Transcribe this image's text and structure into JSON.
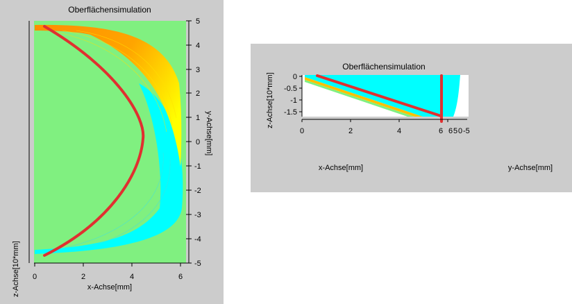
{
  "plot_left": {
    "title": "Oberflächensimulation",
    "x_axis_label": "x-Achse[mm]",
    "y_axis_label": "y-Achse[mm]",
    "z_axis_label": "z-Achse[10*mm]",
    "x_ticks": [
      "0",
      "2",
      "4",
      "6"
    ],
    "y_ticks": [
      "5",
      "4",
      "3",
      "2",
      "1",
      "0",
      "-1",
      "-2",
      "-3",
      "-4",
      "-5"
    ],
    "x_range": [
      0,
      6.25
    ],
    "y_range": [
      -5,
      5
    ],
    "colors": {
      "background": "#80f080",
      "cyan": "#00ffff",
      "orange": "#ff8c00",
      "yellow": "#ffff00",
      "line": "#e03030"
    }
  },
  "plot_right": {
    "title": "Oberflächensimulation",
    "x_axis_label": "x-Achse[mm]",
    "y_axis_label": "y-Achse[mm]",
    "z_axis_label": "z-Achse[10*mm]",
    "x_ticks": [
      "0",
      "2",
      "4",
      "6"
    ],
    "z_ticks": [
      "0",
      "-0.5",
      "-1",
      "-1.5"
    ],
    "y_ticks_partial": [
      "6",
      "5",
      "0",
      "-5"
    ],
    "colors": {
      "cyan": "#00ffff",
      "line": "#e03030"
    }
  }
}
